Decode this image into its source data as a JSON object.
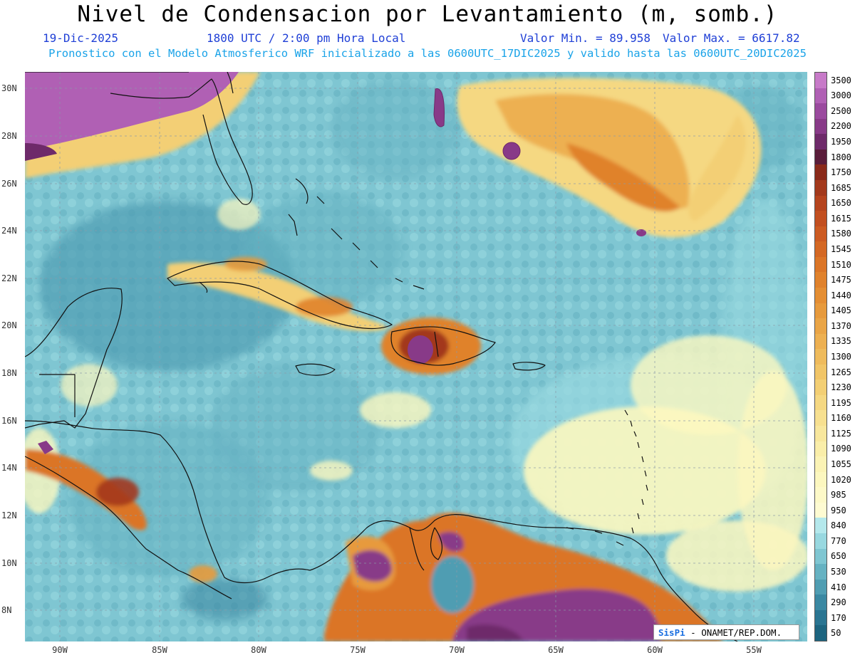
{
  "header": {
    "title": "Nivel de Condensacion por Levantamiento (m, somb.)",
    "date": "19-Dic-2025",
    "time": "1800 UTC / 2:00 pm Hora Local",
    "vmin": "Valor Min. = 89.958",
    "vmax": "Valor Max. = 6617.82",
    "model_info": "Pronostico con el Modelo Atmosferico WRF inicializado a las 0600UTC_17DIC2025 y valido hasta las  0600UTC_20DIC2025"
  },
  "axes": {
    "lon_labels": [
      "90W",
      "85W",
      "80W",
      "75W",
      "70W",
      "65W",
      "60W",
      "55W"
    ],
    "lat_labels": [
      "30N",
      "28N",
      "26N",
      "24N",
      "22N",
      "20N",
      "18N",
      "16N",
      "14N",
      "12N",
      "10N",
      "8N"
    ]
  },
  "colorbar": {
    "labels": [
      "3500",
      "3000",
      "2500",
      "2200",
      "1950",
      "1800",
      "1750",
      "1685",
      "1650",
      "1615",
      "1580",
      "1545",
      "1510",
      "1475",
      "1440",
      "1405",
      "1370",
      "1335",
      "1300",
      "1265",
      "1230",
      "1195",
      "1160",
      "1125",
      "1090",
      "1055",
      "1020",
      "985",
      "950",
      "840",
      "770",
      "650",
      "530",
      "410",
      "290",
      "170",
      "50"
    ],
    "colors": [
      "#c77ac8",
      "#b060b4",
      "#9a4a9e",
      "#883a88",
      "#6e2a6a",
      "#5a1d3a",
      "#8a2a1a",
      "#a3391c",
      "#b5441e",
      "#c24f20",
      "#cc5b22",
      "#d46824",
      "#db7527",
      "#e0822c",
      "#e48e33",
      "#e79a3c",
      "#eaa546",
      "#edb051",
      "#efbb5c",
      "#f1c567",
      "#f3cf74",
      "#f5d882",
      "#f7e090",
      "#f8e79d",
      "#faeea9",
      "#fbf3b5",
      "#fcf7bf",
      "#fdf9c8",
      "#fefbd2",
      "#b4e8ec",
      "#98d8e0",
      "#7fc6d2",
      "#66b2c2",
      "#4f9db2",
      "#3a88a2",
      "#2a7592",
      "#1d6580"
    ]
  },
  "credit": {
    "logo": "SisPi",
    "text": " - ONAMET/REP.DOM."
  }
}
